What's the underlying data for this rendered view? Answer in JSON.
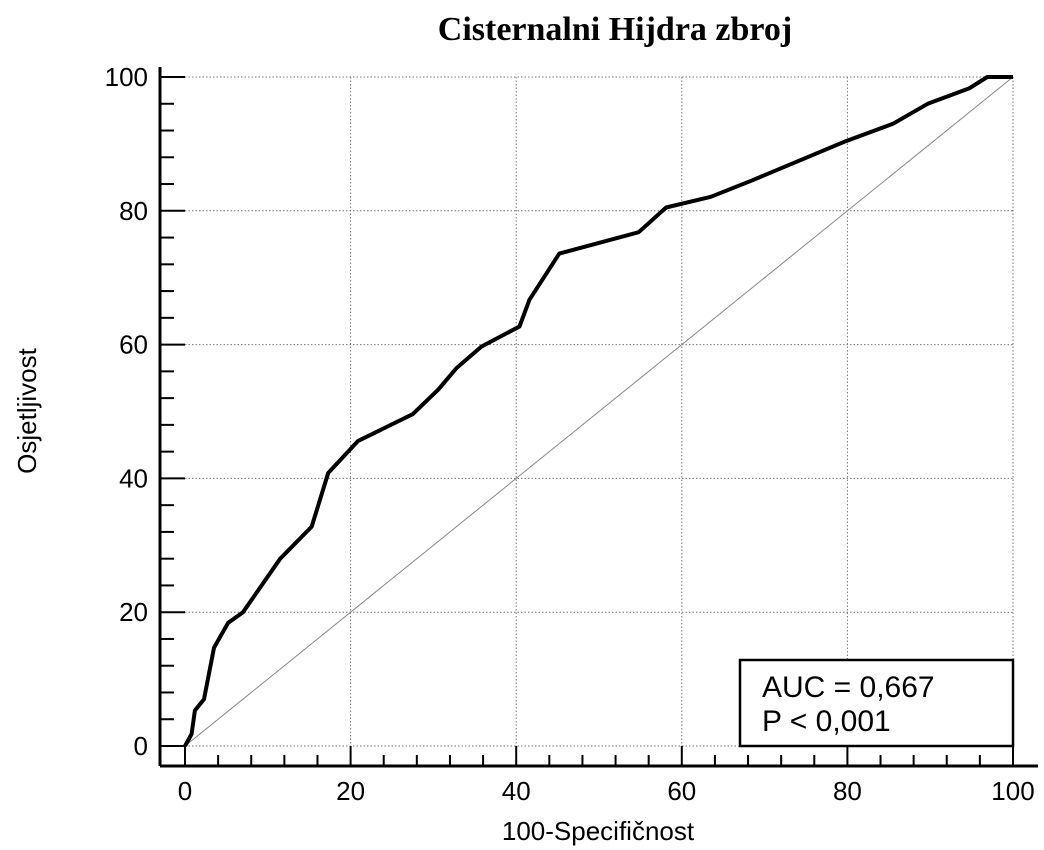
{
  "chart_data": {
    "type": "line",
    "title": "Cisternalni Hijdra zbroj",
    "xlabel": "100-Specifičnost",
    "ylabel": "Osjetljivost",
    "xlim": [
      0,
      100
    ],
    "ylim": [
      0,
      100
    ],
    "x_ticks": [
      "0",
      "20",
      "40",
      "60",
      "80",
      "100"
    ],
    "y_ticks": [
      "0",
      "20",
      "40",
      "60",
      "80",
      "100"
    ],
    "grid": true,
    "series": [
      {
        "x": [
          0,
          0.8,
          1.2,
          2.3,
          3.5,
          5.2,
          7.0,
          11.5,
          15.3,
          17.3,
          20.9,
          27.5,
          30.6,
          32.8,
          35.8,
          40.4,
          41.6,
          45.2,
          54.8,
          58.1,
          63.5,
          68.4,
          79.8,
          85.5,
          89.7,
          94.7,
          96.9,
          100
        ],
        "y": [
          0,
          1.8,
          5.3,
          7.0,
          14.7,
          18.4,
          20.0,
          28.0,
          32.8,
          40.8,
          45.6,
          49.6,
          53.3,
          56.5,
          59.7,
          62.7,
          66.7,
          73.6,
          76.8,
          80.5,
          82.1,
          84.5,
          90.4,
          93.0,
          96.0,
          98.3,
          100,
          100
        ]
      }
    ],
    "reference_line": {
      "x": [
        0,
        100
      ],
      "y": [
        0,
        100
      ]
    },
    "annotation": {
      "lines": [
        "AUC = 0,667",
        "P < 0,001"
      ]
    }
  }
}
